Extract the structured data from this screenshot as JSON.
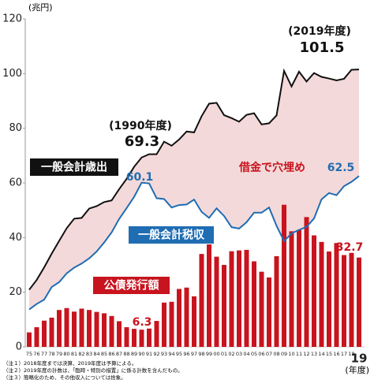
{
  "chart_data": {
    "type": "combo",
    "y_label": "(兆円)",
    "x_label": "(年度)",
    "categories": [
      "75",
      "76",
      "77",
      "78",
      "79",
      "80",
      "81",
      "82",
      "83",
      "84",
      "85",
      "86",
      "87",
      "88",
      "89",
      "90",
      "91",
      "92",
      "93",
      "94",
      "95",
      "96",
      "97",
      "98",
      "99",
      "00",
      "01",
      "02",
      "03",
      "04",
      "05",
      "06",
      "07",
      "08",
      "09",
      "10",
      "11",
      "12",
      "13",
      "14",
      "15",
      "16",
      "17",
      "18",
      "19"
    ],
    "series": [
      {
        "name": "一般会計歳出",
        "type": "line",
        "color": "#111111",
        "values": [
          20.9,
          24.5,
          29.1,
          34.1,
          38.8,
          43.4,
          46.9,
          47.2,
          50.6,
          51.5,
          53.0,
          53.6,
          57.7,
          61.5,
          65.9,
          69.3,
          70.5,
          70.5,
          75.1,
          73.6,
          75.9,
          78.8,
          78.5,
          84.4,
          89.0,
          89.3,
          84.8,
          83.7,
          82.4,
          84.9,
          85.5,
          81.4,
          81.8,
          84.7,
          101.0,
          95.3,
          100.7,
          97.1,
          100.2,
          98.8,
          98.2,
          97.5,
          98.1,
          101.4,
          101.5
        ]
      },
      {
        "name": "一般会計税収",
        "type": "line",
        "color": "#1f6db3",
        "values": [
          13.7,
          15.7,
          17.3,
          21.9,
          23.7,
          26.9,
          29.0,
          30.5,
          32.4,
          34.9,
          38.2,
          41.9,
          46.8,
          50.8,
          54.9,
          60.1,
          59.8,
          54.4,
          54.1,
          51.0,
          51.9,
          52.1,
          53.9,
          49.4,
          47.2,
          50.7,
          47.9,
          43.8,
          43.3,
          45.6,
          49.1,
          49.1,
          51.0,
          44.3,
          38.7,
          41.5,
          42.8,
          43.9,
          47.0,
          54.0,
          56.3,
          55.5,
          58.8,
          60.4,
          62.5
        ]
      },
      {
        "name": "公債発行額",
        "type": "bar",
        "color": "#c8141e",
        "values": [
          5.3,
          7.2,
          9.6,
          10.7,
          13.5,
          14.2,
          12.9,
          14.0,
          13.5,
          12.8,
          12.3,
          11.3,
          9.4,
          7.2,
          6.6,
          6.3,
          6.7,
          9.5,
          16.2,
          16.5,
          21.2,
          21.7,
          18.5,
          34.0,
          37.5,
          33.0,
          30.0,
          35.0,
          35.3,
          35.5,
          31.3,
          27.5,
          25.4,
          33.2,
          52.0,
          42.3,
          42.8,
          47.5,
          40.8,
          38.4,
          34.9,
          38.0,
          33.6,
          34.4,
          32.7
        ]
      }
    ],
    "gap_fill_color": "#f4d9da",
    "annotations": [
      "(1990年度)",
      "(2019年度)",
      "借金で穴埋め"
    ],
    "ylim": [
      0,
      120
    ],
    "yticks": [
      0,
      20,
      40,
      60,
      80,
      100,
      120
    ],
    "notes": [
      "（注１）2018年度までは決算、2019年度は予算による。",
      "（注２）2019年度の計数は、「臨時・特別の措置」に係る計数を含んだもの。",
      "（注３）簡略化のため、その他収入については捨象。"
    ]
  }
}
